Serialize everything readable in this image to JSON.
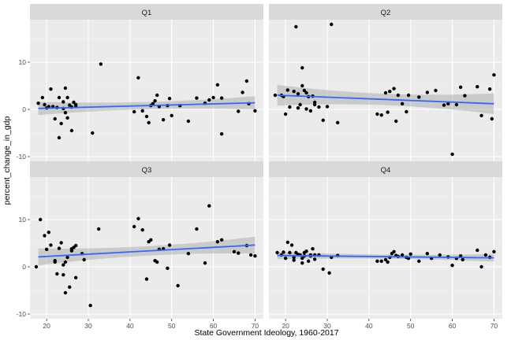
{
  "chart_data": {
    "type": "scatter",
    "xlabel": "State Government Ideology, 1960-2017",
    "ylabel": "percent_change_in_gdp",
    "xlim": [
      16,
      72
    ],
    "ylim": [
      -11,
      19
    ],
    "x_ticks": [
      20,
      30,
      40,
      50,
      60,
      70
    ],
    "y_ticks": [
      -10,
      0,
      10
    ],
    "grid": true,
    "colors": {
      "point": "#000000",
      "line": "#3366FF",
      "ribbon": "#999999",
      "panel": "#EBEBEB",
      "strip": "#D9D9D9"
    },
    "facets": [
      {
        "label": "Q1",
        "fit": {
          "x": [
            18,
            70
          ],
          "y": [
            0.2,
            1.4
          ],
          "ci_low": [
            -1.2,
            0.0
          ],
          "ci_high": [
            1.6,
            2.8
          ]
        },
        "points": [
          [
            18,
            1.3
          ],
          [
            19,
            2.5
          ],
          [
            19.5,
            1.0
          ],
          [
            20,
            0.3
          ],
          [
            20.5,
            0.6
          ],
          [
            21,
            4.3
          ],
          [
            21.5,
            0.6
          ],
          [
            22,
            -2.0
          ],
          [
            22.5,
            0.4
          ],
          [
            23,
            2.5
          ],
          [
            23,
            -6.0
          ],
          [
            23.5,
            -3.0
          ],
          [
            24,
            0.2
          ],
          [
            24,
            1.6
          ],
          [
            24.5,
            4.5
          ],
          [
            24.5,
            -0.7
          ],
          [
            25,
            2.5
          ],
          [
            25,
            -1.8
          ],
          [
            25.5,
            0.9
          ],
          [
            26,
            -4.5
          ],
          [
            26,
            0.5
          ],
          [
            26.5,
            1.5
          ],
          [
            27,
            1.0
          ],
          [
            27,
            0.6
          ],
          [
            31,
            -5.0
          ],
          [
            33,
            9.6
          ],
          [
            41,
            -0.5
          ],
          [
            42,
            6.7
          ],
          [
            43,
            -0.3
          ],
          [
            44,
            -1.5
          ],
          [
            44.5,
            -2.8
          ],
          [
            45,
            0.8
          ],
          [
            45.5,
            1.2
          ],
          [
            46,
            1.8
          ],
          [
            46.5,
            3.0
          ],
          [
            47,
            0.6
          ],
          [
            48,
            -2.2
          ],
          [
            49,
            0.8
          ],
          [
            49.5,
            2.3
          ],
          [
            50,
            -1.3
          ],
          [
            52,
            0.8
          ],
          [
            54,
            -2.5
          ],
          [
            56,
            2.4
          ],
          [
            58,
            1.3
          ],
          [
            59,
            2.0
          ],
          [
            60,
            2.5
          ],
          [
            61,
            5.2
          ],
          [
            62,
            2.4
          ],
          [
            62,
            -5.2
          ],
          [
            66,
            -0.4
          ],
          [
            67,
            3.6
          ],
          [
            68,
            6.0
          ],
          [
            68.5,
            1.2
          ],
          [
            70,
            -0.3
          ]
        ]
      },
      {
        "label": "Q2",
        "fit": {
          "x": [
            18,
            70
          ],
          "y": [
            3.0,
            1.2
          ],
          "ci_low": [
            0.8,
            -0.6
          ],
          "ci_high": [
            5.2,
            3.0
          ]
        },
        "points": [
          [
            17.5,
            3.0
          ],
          [
            19,
            3.0
          ],
          [
            19.5,
            2.7
          ],
          [
            20,
            -1.0
          ],
          [
            20.5,
            4.1
          ],
          [
            21,
            0.5
          ],
          [
            22,
            3.8
          ],
          [
            22.5,
            17.5
          ],
          [
            23,
            0.3
          ],
          [
            23,
            3.3
          ],
          [
            23.5,
            1.0
          ],
          [
            24,
            5.0
          ],
          [
            24,
            8.8
          ],
          [
            24.5,
            4.0
          ],
          [
            25,
            0.1
          ],
          [
            25,
            3.5
          ],
          [
            25.5,
            2.7
          ],
          [
            26,
            -0.3
          ],
          [
            26.5,
            2.8
          ],
          [
            27,
            1.5
          ],
          [
            27,
            1.0
          ],
          [
            28,
            0.5
          ],
          [
            29,
            -2.3
          ],
          [
            30,
            0.6
          ],
          [
            31,
            18.0
          ],
          [
            32.5,
            -2.8
          ],
          [
            42,
            -1.0
          ],
          [
            43,
            -1.2
          ],
          [
            44,
            3.5
          ],
          [
            44.5,
            -0.6
          ],
          [
            45,
            3.8
          ],
          [
            46,
            4.4
          ],
          [
            46.5,
            -2.5
          ],
          [
            47,
            3.0
          ],
          [
            48,
            1.2
          ],
          [
            49,
            -0.5
          ],
          [
            49.5,
            3.0
          ],
          [
            52,
            2.6
          ],
          [
            54,
            3.6
          ],
          [
            56,
            4.0
          ],
          [
            58,
            0.9
          ],
          [
            59,
            1.2
          ],
          [
            60,
            -9.5
          ],
          [
            61,
            1.0
          ],
          [
            62,
            4.7
          ],
          [
            63,
            2.9
          ],
          [
            66,
            4.8
          ],
          [
            67,
            -1.3
          ],
          [
            69,
            4.3
          ],
          [
            69.5,
            -2.0
          ],
          [
            70,
            7.3
          ]
        ]
      },
      {
        "label": "Q3",
        "fit": {
          "x": [
            18,
            70
          ],
          "y": [
            2.1,
            4.6
          ],
          "ci_low": [
            0.3,
            2.7
          ],
          "ci_high": [
            3.9,
            6.5
          ]
        },
        "points": [
          [
            17.5,
            0.0
          ],
          [
            18.5,
            10.0
          ],
          [
            19.5,
            6.6
          ],
          [
            20,
            3.7
          ],
          [
            20.5,
            7.3
          ],
          [
            21,
            4.6
          ],
          [
            22,
            1.3
          ],
          [
            22,
            1.0
          ],
          [
            22.5,
            -1.5
          ],
          [
            23,
            3.9
          ],
          [
            23.5,
            5.1
          ],
          [
            24,
            -1.7
          ],
          [
            24,
            0.4
          ],
          [
            24.5,
            -5.5
          ],
          [
            24.5,
            1.0
          ],
          [
            25,
            2.0
          ],
          [
            25.5,
            -4.3
          ],
          [
            26,
            3.8
          ],
          [
            26,
            3.4
          ],
          [
            26.5,
            4.1
          ],
          [
            27,
            4.5
          ],
          [
            27,
            -2.3
          ],
          [
            28.5,
            2.8
          ],
          [
            29,
            1.5
          ],
          [
            30.5,
            -8.2
          ],
          [
            32.5,
            8.0
          ],
          [
            41,
            8.5
          ],
          [
            42,
            10.2
          ],
          [
            43,
            7.8
          ],
          [
            44,
            -2.6
          ],
          [
            44.5,
            5.3
          ],
          [
            45,
            5.7
          ],
          [
            46,
            1.3
          ],
          [
            46.5,
            1.0
          ],
          [
            47,
            3.7
          ],
          [
            48,
            3.8
          ],
          [
            49,
            -0.3
          ],
          [
            49.5,
            4.6
          ],
          [
            51.5,
            -4.0
          ],
          [
            54,
            2.8
          ],
          [
            56,
            8.0
          ],
          [
            58,
            0.8
          ],
          [
            59,
            12.9
          ],
          [
            61,
            5.3
          ],
          [
            62,
            5.7
          ],
          [
            65,
            3.2
          ],
          [
            66,
            2.9
          ],
          [
            68,
            4.5
          ],
          [
            69,
            2.5
          ],
          [
            70,
            2.3
          ]
        ]
      },
      {
        "label": "Q4",
        "fit": {
          "x": [
            18,
            70
          ],
          "y": [
            2.4,
            1.9
          ],
          "ci_low": [
            1.6,
            1.1
          ],
          "ci_high": [
            3.2,
            2.7
          ]
        },
        "points": [
          [
            18,
            3.0
          ],
          [
            19,
            2.5
          ],
          [
            19.5,
            3.1
          ],
          [
            20,
            1.8
          ],
          [
            20.5,
            5.2
          ],
          [
            21,
            3.0
          ],
          [
            21.5,
            4.6
          ],
          [
            22,
            2.0
          ],
          [
            22,
            1.4
          ],
          [
            22.5,
            3.0
          ],
          [
            23,
            2.6
          ],
          [
            23.5,
            2.5
          ],
          [
            24,
            1.8
          ],
          [
            24,
            0.8
          ],
          [
            24.5,
            3.0
          ],
          [
            24.5,
            2.3
          ],
          [
            25,
            3.3
          ],
          [
            25.5,
            1.2
          ],
          [
            26,
            2.3
          ],
          [
            26,
            2.5
          ],
          [
            26.5,
            3.8
          ],
          [
            27,
            1.6
          ],
          [
            27,
            2.5
          ],
          [
            28,
            2.5
          ],
          [
            29,
            -0.5
          ],
          [
            30.5,
            -1.3
          ],
          [
            31,
            2.0
          ],
          [
            32.5,
            2.4
          ],
          [
            42,
            1.2
          ],
          [
            43,
            1.2
          ],
          [
            44,
            1.5
          ],
          [
            44.5,
            1.0
          ],
          [
            45,
            2.0
          ],
          [
            45.5,
            2.8
          ],
          [
            46,
            3.2
          ],
          [
            46.5,
            2.4
          ],
          [
            47,
            2.2
          ],
          [
            48,
            2.5
          ],
          [
            49,
            2.0
          ],
          [
            49.5,
            1.8
          ],
          [
            50,
            2.7
          ],
          [
            52,
            1.2
          ],
          [
            54,
            2.8
          ],
          [
            55,
            1.8
          ],
          [
            57,
            2.5
          ],
          [
            59,
            2.1
          ],
          [
            60,
            0.3
          ],
          [
            61,
            1.8
          ],
          [
            62,
            2.3
          ],
          [
            62.5,
            1.5
          ],
          [
            66,
            3.5
          ],
          [
            67,
            0.0
          ],
          [
            68,
            2.5
          ],
          [
            69,
            2.0
          ],
          [
            70,
            3.2
          ]
        ]
      }
    ]
  }
}
